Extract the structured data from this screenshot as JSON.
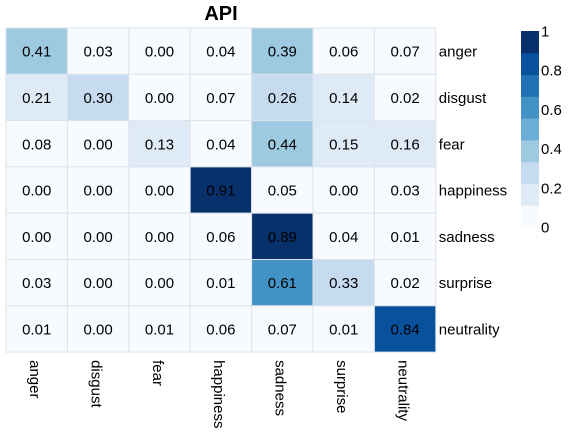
{
  "chart_data": {
    "type": "heatmap",
    "title": "API",
    "columns": [
      "anger",
      "disgust",
      "fear",
      "happiness",
      "sadness",
      "surprise",
      "neutrality"
    ],
    "rows": [
      "anger",
      "disgust",
      "fear",
      "happiness",
      "sadness",
      "surprise",
      "neutrality"
    ],
    "values": [
      [
        0.41,
        0.03,
        0.0,
        0.04,
        0.39,
        0.06,
        0.07
      ],
      [
        0.21,
        0.3,
        0.0,
        0.07,
        0.26,
        0.14,
        0.02
      ],
      [
        0.08,
        0.0,
        0.13,
        0.04,
        0.44,
        0.15,
        0.16
      ],
      [
        0.0,
        0.0,
        0.0,
        0.91,
        0.05,
        0.0,
        0.03
      ],
      [
        0.0,
        0.0,
        0.0,
        0.06,
        0.89,
        0.04,
        0.01
      ],
      [
        0.03,
        0.0,
        0.0,
        0.01,
        0.61,
        0.33,
        0.02
      ],
      [
        0.01,
        0.0,
        0.01,
        0.06,
        0.07,
        0.01,
        0.84
      ]
    ],
    "value_range": [
      0,
      1
    ],
    "colorbar": {
      "tick_labels": [
        "0",
        "0.2",
        "0.4",
        "0.6",
        "0.8",
        "1"
      ],
      "colors": [
        "#f7fbff",
        "#deebf7",
        "#c6dbef",
        "#9ecae1",
        "#6baed6",
        "#4292c6",
        "#2171b5",
        "#08519c",
        "#08306b"
      ]
    },
    "legend_position": "right",
    "grid": true
  }
}
